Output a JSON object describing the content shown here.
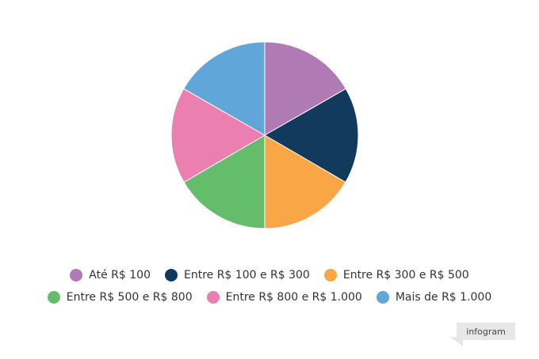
{
  "chart_data": {
    "type": "pie",
    "title": "",
    "slices": [
      {
        "label": "Até R$ 100",
        "value": 16.7,
        "color": "#b07ab4"
      },
      {
        "label": "Entre R$ 100 e R$ 300",
        "value": 16.7,
        "color": "#123a5c"
      },
      {
        "label": "Entre R$ 300 e R$ 500",
        "value": 16.6,
        "color": "#f8a646"
      },
      {
        "label": "Entre R$ 500 e R$ 800",
        "value": 16.6,
        "color": "#64bd6a"
      },
      {
        "label": "Entre R$ 800 e R$ 1.000",
        "value": 16.7,
        "color": "#ea7fb0"
      },
      {
        "label": "Mais de R$ 1.000",
        "value": 16.7,
        "color": "#60a6d9"
      }
    ],
    "legend_position": "bottom"
  },
  "legend": {
    "items": [
      {
        "label": "Até R$ 100",
        "color": "#b07ab4"
      },
      {
        "label": "Entre R$ 100 e R$ 300",
        "color": "#123a5c"
      },
      {
        "label": "Entre R$ 300 e R$ 500",
        "color": "#f8a646"
      },
      {
        "label": "Entre R$ 500 e R$ 800",
        "color": "#64bd6a"
      },
      {
        "label": "Entre R$ 800 e R$ 1.000",
        "color": "#ea7fb0"
      },
      {
        "label": "Mais de R$ 1.000",
        "color": "#60a6d9"
      }
    ]
  },
  "badge": {
    "label": "infogram"
  }
}
